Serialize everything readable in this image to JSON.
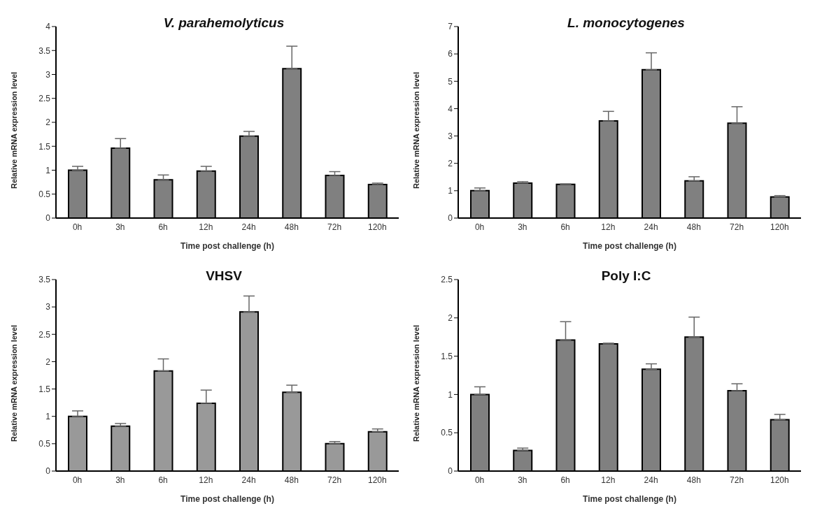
{
  "chart_data": [
    {
      "type": "bar",
      "title": "V. parahemolyticus",
      "xlabel": "Time post challenge (h)",
      "ylabel": "Relative mRNA expression level",
      "categories": [
        "0h",
        "3h",
        "6h",
        "12h",
        "24h",
        "48h",
        "72h",
        "120h"
      ],
      "values": [
        1.0,
        1.46,
        0.8,
        0.98,
        1.71,
        3.12,
        0.89,
        0.7
      ],
      "errors": [
        [
          1.0,
          1.08
        ],
        [
          1.46,
          1.66
        ],
        [
          0.8,
          0.9
        ],
        [
          0.98,
          1.08
        ],
        [
          1.71,
          1.81
        ],
        [
          3.12,
          3.59
        ],
        [
          0.89,
          0.97
        ],
        [
          0.7,
          0.73
        ]
      ],
      "color": "#808080",
      "ylim": [
        0,
        4
      ],
      "yticks": [
        0,
        0.5,
        1,
        1.5,
        2,
        2.5,
        3,
        3.5,
        4
      ],
      "grid": false,
      "legend": false
    },
    {
      "type": "bar",
      "title": "L. monocytogenes",
      "xlabel": "Time post challenge (h)",
      "ylabel": "Relative mRNA expression level",
      "categories": [
        "0h",
        "3h",
        "6h",
        "12h",
        "24h",
        "48h",
        "72h",
        "120h"
      ],
      "values": [
        1.0,
        1.28,
        1.23,
        3.55,
        5.42,
        1.36,
        3.47,
        0.77
      ],
      "errors": [
        [
          1.0,
          1.1
        ],
        [
          1.28,
          1.33
        ],
        [
          1.23,
          1.25
        ],
        [
          3.55,
          3.9
        ],
        [
          5.42,
          6.04
        ],
        [
          1.36,
          1.51
        ],
        [
          3.47,
          4.07
        ],
        [
          0.77,
          0.82
        ]
      ],
      "color": "#808080",
      "ylim": [
        0,
        7
      ],
      "yticks": [
        0,
        1,
        2,
        3,
        4,
        5,
        6,
        7
      ],
      "grid": false,
      "legend": false
    },
    {
      "type": "bar",
      "title": "VHSV",
      "xlabel": "Time post challenge (h)",
      "ylabel": "Relative mRNA expression level",
      "categories": [
        "0h",
        "3h",
        "6h",
        "12h",
        "24h",
        "48h",
        "72h",
        "120h"
      ],
      "values": [
        1.0,
        0.82,
        1.83,
        1.24,
        2.91,
        1.44,
        0.5,
        0.72
      ],
      "errors": [
        [
          1.0,
          1.1
        ],
        [
          0.82,
          0.87
        ],
        [
          1.83,
          2.05
        ],
        [
          1.24,
          1.48
        ],
        [
          2.91,
          3.2
        ],
        [
          1.44,
          1.57
        ],
        [
          0.5,
          0.54
        ],
        [
          0.72,
          0.77
        ]
      ],
      "color": "#999999",
      "ylim": [
        0,
        3.5
      ],
      "yticks": [
        0,
        0.5,
        1,
        1.5,
        2,
        2.5,
        3,
        3.5
      ],
      "grid": false,
      "legend": false
    },
    {
      "type": "bar",
      "title": "Poly I:C",
      "xlabel": "Time post challenge (h)",
      "ylabel": "Relative mRNA expression level",
      "categories": [
        "0h",
        "3h",
        "6h",
        "12h",
        "24h",
        "48h",
        "72h",
        "120h"
      ],
      "values": [
        1.0,
        0.27,
        1.71,
        1.66,
        1.33,
        1.75,
        1.05,
        0.67
      ],
      "errors": [
        [
          1.0,
          1.1
        ],
        [
          0.27,
          0.3
        ],
        [
          1.71,
          1.95
        ],
        [
          1.66,
          1.67
        ],
        [
          1.33,
          1.4
        ],
        [
          1.75,
          2.01
        ],
        [
          1.05,
          1.14
        ],
        [
          0.67,
          0.74
        ]
      ],
      "color": "#808080",
      "ylim": [
        0,
        2.5
      ],
      "yticks": [
        0,
        0.5,
        1,
        1.5,
        2,
        2.5
      ],
      "grid": false,
      "legend": false
    }
  ]
}
